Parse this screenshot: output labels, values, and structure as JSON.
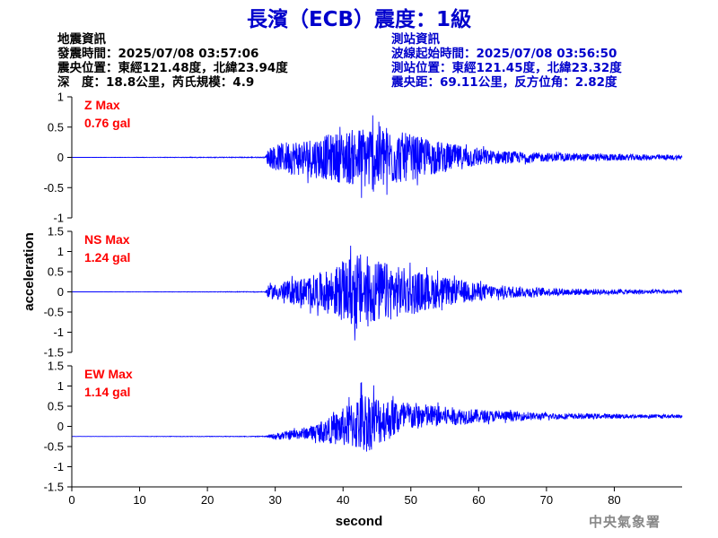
{
  "title": "長濱（ECB）震度：1級",
  "quake_info": {
    "heading": "地震資訊",
    "origin_time": "發震時間：2025/07/08 03:57:06",
    "epicenter": "震央位置：東經121.48度，北緯23.94度",
    "depth_magnitude": "深　度：18.8公里，芮氏規模：4.9"
  },
  "station_info": {
    "heading": "測站資訊",
    "wave_start": "波線起始時間：2025/07/08 03:56:50",
    "location": "測站位置：東經121.45度，北緯23.32度",
    "distance": "震央距：69.11公里，反方位角：2.82度"
  },
  "credit": "中央氣象署",
  "colors": {
    "title": "#0000cc",
    "trace": "#0000ff",
    "max_label": "#ff0000",
    "axis": "#000000"
  },
  "chart_data": {
    "type": "line",
    "xlabel": "second",
    "ylabel": "acceleration",
    "xlim": [
      0,
      90
    ],
    "xticks": [
      0,
      10,
      20,
      30,
      40,
      50,
      60,
      70,
      80
    ],
    "grid": false,
    "panels": [
      {
        "name": "Z Max",
        "max_value": "0.76 gal",
        "ylim": [
          -1,
          1
        ],
        "yticks": [
          1,
          0.5,
          0,
          -0.5,
          -1
        ],
        "baseline": 0.0,
        "envelope": [
          [
            0,
            0.0
          ],
          [
            28.5,
            0.01
          ],
          [
            29,
            0.2
          ],
          [
            32,
            0.35
          ],
          [
            37,
            0.45
          ],
          [
            42,
            0.6
          ],
          [
            45,
            0.76
          ],
          [
            48,
            0.55
          ],
          [
            52,
            0.4
          ],
          [
            56,
            0.28
          ],
          [
            62,
            0.15
          ],
          [
            70,
            0.09
          ],
          [
            80,
            0.07
          ],
          [
            90,
            0.05
          ]
        ]
      },
      {
        "name": "NS Max",
        "max_value": "1.24 gal",
        "ylim": [
          -1.5,
          1.5
        ],
        "yticks": [
          1.5,
          1,
          0.5,
          0,
          -0.5,
          -1,
          -1.5
        ],
        "baseline": 0.0,
        "envelope": [
          [
            0,
            0.0
          ],
          [
            28.5,
            0.01
          ],
          [
            29,
            0.2
          ],
          [
            33,
            0.4
          ],
          [
            37,
            0.6
          ],
          [
            40,
            0.9
          ],
          [
            42,
            1.24
          ],
          [
            45,
            1.0
          ],
          [
            48,
            0.8
          ],
          [
            52,
            0.6
          ],
          [
            56,
            0.4
          ],
          [
            62,
            0.22
          ],
          [
            70,
            0.12
          ],
          [
            80,
            0.08
          ],
          [
            90,
            0.06
          ]
        ]
      },
      {
        "name": "EW Max",
        "max_value": "1.14 gal",
        "ylim": [
          -1.5,
          1.5
        ],
        "yticks": [
          1.5,
          1,
          0.5,
          0,
          -0.5,
          -1,
          -1.5
        ],
        "drift": [
          [
            0,
            -0.25
          ],
          [
            30,
            -0.25
          ],
          [
            38,
            -0.1
          ],
          [
            43,
            0.1
          ],
          [
            50,
            0.25
          ],
          [
            90,
            0.25
          ]
        ],
        "envelope": [
          [
            0,
            0.0
          ],
          [
            28.5,
            0.01
          ],
          [
            30,
            0.1
          ],
          [
            35,
            0.2
          ],
          [
            38,
            0.4
          ],
          [
            41,
            0.7
          ],
          [
            43,
            1.0
          ],
          [
            46,
            0.7
          ],
          [
            50,
            0.45
          ],
          [
            55,
            0.3
          ],
          [
            62,
            0.18
          ],
          [
            70,
            0.1
          ],
          [
            80,
            0.07
          ],
          [
            90,
            0.05
          ]
        ]
      }
    ]
  }
}
